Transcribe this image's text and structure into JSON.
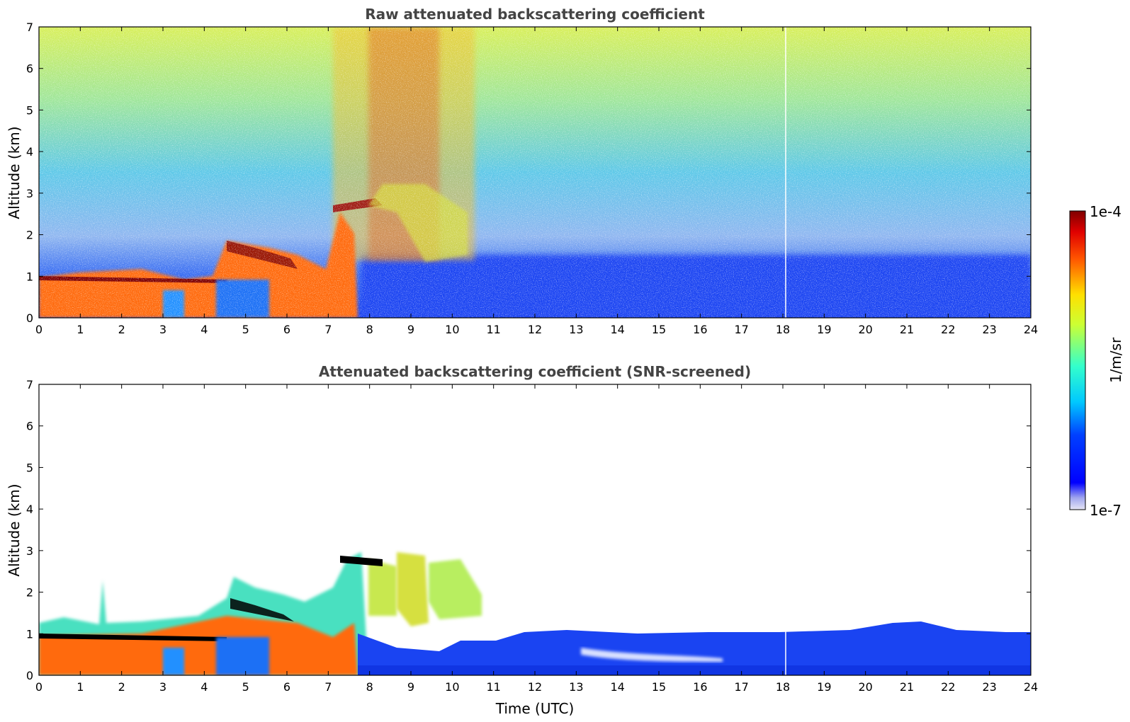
{
  "chart_data": [
    {
      "type": "heatmap",
      "title": "Raw attenuated backscattering coefficient",
      "xlabel": "",
      "ylabel": "Altitude (km)",
      "xlim": [
        0,
        24
      ],
      "ylim": [
        0,
        7
      ],
      "x_ticks": [
        "0",
        "1",
        "2",
        "3",
        "4",
        "5",
        "6",
        "7",
        "8",
        "9",
        "10",
        "11",
        "12",
        "13",
        "14",
        "15",
        "16",
        "17",
        "18",
        "19",
        "20",
        "21",
        "22",
        "23",
        "24"
      ],
      "y_ticks": [
        "0",
        "1",
        "2",
        "3",
        "4",
        "5",
        "6",
        "7"
      ],
      "screened": false
    },
    {
      "type": "heatmap",
      "title": "Attenuated backscattering coefficient (SNR-screened)",
      "xlabel": "Time (UTC)",
      "ylabel": "Altitude (km)",
      "xlim": [
        0,
        24
      ],
      "ylim": [
        0,
        7
      ],
      "x_ticks": [
        "0",
        "1",
        "2",
        "3",
        "4",
        "5",
        "6",
        "7",
        "8",
        "9",
        "10",
        "11",
        "12",
        "13",
        "14",
        "15",
        "16",
        "17",
        "18",
        "19",
        "20",
        "21",
        "22",
        "23",
        "24"
      ],
      "y_ticks": [
        "0",
        "1",
        "2",
        "3",
        "4",
        "5",
        "6",
        "7"
      ],
      "screened": true
    }
  ],
  "colorbar": {
    "label": "1/m/sr",
    "max_label": "1e-4",
    "min_label": "1e-7",
    "scale": "log",
    "range": [
      1e-07,
      0.0001
    ],
    "colormap": "jet"
  }
}
